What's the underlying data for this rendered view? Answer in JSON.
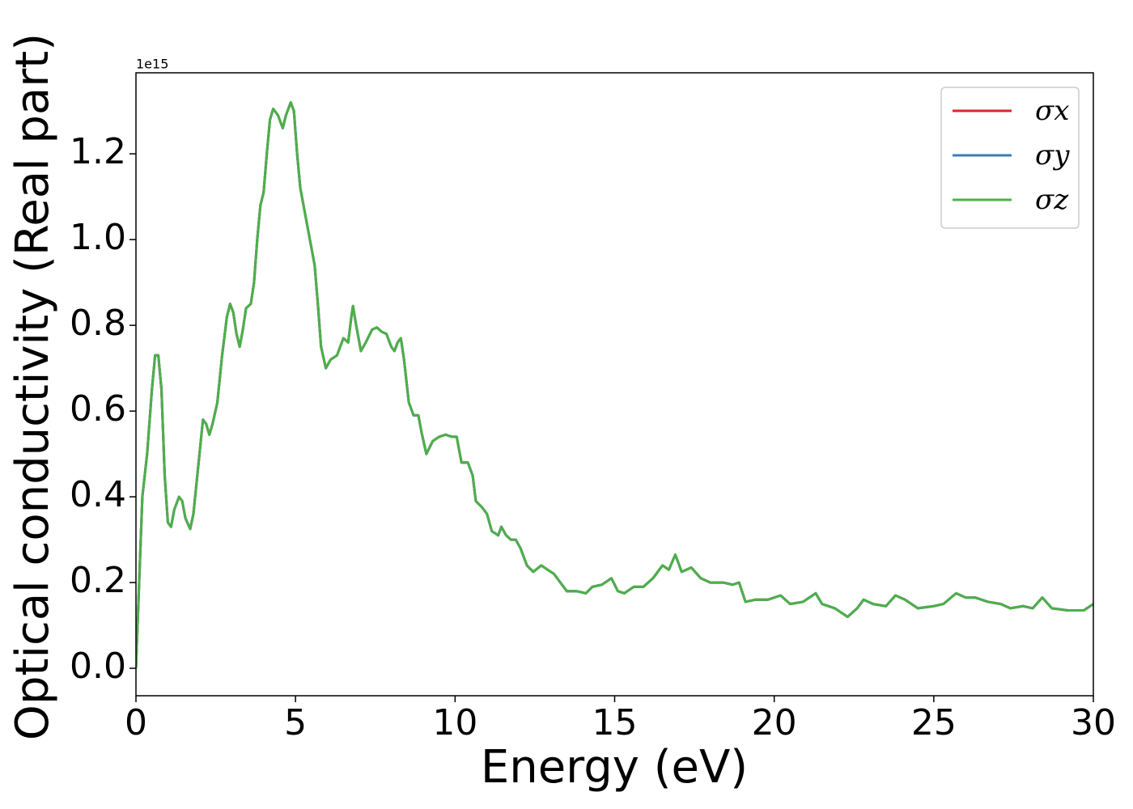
{
  "chart_data": {
    "type": "line",
    "x_label": "Energy (eV)",
    "y_label": "Optical conductivity (Real part)",
    "y_offset_label": "1e15",
    "xlim": [
      0,
      30
    ],
    "ylim": [
      -0.064,
      1.389
    ],
    "xticks": [
      0,
      5,
      10,
      15,
      20,
      25,
      30
    ],
    "yticks": [
      {
        "value": 0,
        "label": "0.0"
      },
      {
        "value": 0.2,
        "label": "0.2"
      },
      {
        "value": 0.4,
        "label": "0.4"
      },
      {
        "value": 0.6,
        "label": "0.6"
      },
      {
        "value": 0.8,
        "label": "0.8"
      },
      {
        "value": 1.0,
        "label": "1.0"
      },
      {
        "value": 1.2,
        "label": "1.2"
      }
    ],
    "legend": "upper right",
    "x": [
      0,
      0.1,
      0.2,
      0.35,
      0.5,
      0.6,
      0.7,
      0.8,
      0.9,
      1.0,
      1.1,
      1.2,
      1.35,
      1.45,
      1.55,
      1.7,
      1.8,
      1.95,
      2.1,
      2.2,
      2.3,
      2.4,
      2.55,
      2.7,
      2.85,
      2.95,
      3.05,
      3.15,
      3.25,
      3.35,
      3.45,
      3.6,
      3.7,
      3.8,
      3.9,
      4.0,
      4.1,
      4.2,
      4.3,
      4.45,
      4.6,
      4.7,
      4.85,
      4.95,
      5.05,
      5.15,
      5.3,
      5.5,
      5.6,
      5.7,
      5.8,
      5.95,
      6.1,
      6.3,
      6.5,
      6.65,
      6.75,
      6.8,
      6.9,
      7.05,
      7.2,
      7.4,
      7.55,
      7.7,
      7.85,
      8.0,
      8.1,
      8.2,
      8.3,
      8.4,
      8.55,
      8.7,
      8.85,
      8.95,
      9.1,
      9.3,
      9.5,
      9.7,
      9.9,
      10.05,
      10.2,
      10.4,
      10.55,
      10.65,
      10.85,
      11.0,
      11.15,
      11.35,
      11.45,
      11.6,
      11.75,
      11.9,
      12.05,
      12.25,
      12.45,
      12.7,
      12.9,
      13.1,
      13.3,
      13.5,
      13.8,
      14.1,
      14.3,
      14.6,
      14.9,
      15.1,
      15.3,
      15.6,
      15.9,
      16.2,
      16.5,
      16.7,
      16.9,
      17.1,
      17.4,
      17.7,
      18.0,
      18.4,
      18.7,
      18.9,
      19.1,
      19.4,
      19.8,
      20.2,
      20.5,
      20.9,
      21.3,
      21.5,
      21.9,
      22.3,
      22.6,
      22.8,
      23.1,
      23.5,
      23.8,
      24.1,
      24.5,
      25.0,
      25.3,
      25.7,
      26.0,
      26.3,
      26.7,
      27.1,
      27.4,
      27.8,
      28.1,
      28.4,
      28.7,
      29.2,
      29.7,
      30.0
    ],
    "series": [
      {
        "name": "σx",
        "color": "#d62728",
        "values": [
          0.0,
          0.2,
          0.4,
          0.5,
          0.65,
          0.73,
          0.73,
          0.65,
          0.45,
          0.34,
          0.33,
          0.37,
          0.4,
          0.39,
          0.35,
          0.325,
          0.36,
          0.47,
          0.58,
          0.57,
          0.545,
          0.57,
          0.62,
          0.73,
          0.82,
          0.85,
          0.83,
          0.78,
          0.75,
          0.79,
          0.84,
          0.85,
          0.9,
          1.0,
          1.08,
          1.11,
          1.2,
          1.28,
          1.305,
          1.29,
          1.26,
          1.29,
          1.32,
          1.3,
          1.2,
          1.12,
          1.06,
          0.98,
          0.94,
          0.85,
          0.75,
          0.7,
          0.72,
          0.73,
          0.77,
          0.76,
          0.82,
          0.845,
          0.8,
          0.74,
          0.76,
          0.79,
          0.795,
          0.785,
          0.78,
          0.75,
          0.74,
          0.76,
          0.77,
          0.72,
          0.62,
          0.59,
          0.59,
          0.55,
          0.5,
          0.53,
          0.54,
          0.545,
          0.54,
          0.54,
          0.48,
          0.48,
          0.45,
          0.39,
          0.375,
          0.36,
          0.32,
          0.31,
          0.33,
          0.31,
          0.3,
          0.3,
          0.28,
          0.24,
          0.225,
          0.24,
          0.23,
          0.22,
          0.2,
          0.18,
          0.18,
          0.175,
          0.19,
          0.195,
          0.21,
          0.18,
          0.175,
          0.19,
          0.19,
          0.21,
          0.24,
          0.23,
          0.265,
          0.225,
          0.235,
          0.21,
          0.2,
          0.2,
          0.195,
          0.2,
          0.155,
          0.16,
          0.16,
          0.17,
          0.15,
          0.155,
          0.175,
          0.15,
          0.14,
          0.12,
          0.14,
          0.16,
          0.15,
          0.145,
          0.17,
          0.16,
          0.14,
          0.145,
          0.15,
          0.175,
          0.165,
          0.165,
          0.155,
          0.15,
          0.14,
          0.145,
          0.14,
          0.165,
          0.14,
          0.135,
          0.135,
          0.15
        ]
      },
      {
        "name": "σy",
        "color": "#3a7fb8",
        "values": [
          0.0,
          0.2,
          0.4,
          0.5,
          0.65,
          0.73,
          0.73,
          0.65,
          0.45,
          0.34,
          0.33,
          0.37,
          0.4,
          0.39,
          0.35,
          0.325,
          0.36,
          0.47,
          0.58,
          0.57,
          0.545,
          0.57,
          0.62,
          0.73,
          0.82,
          0.85,
          0.83,
          0.78,
          0.75,
          0.79,
          0.84,
          0.85,
          0.9,
          1.0,
          1.08,
          1.11,
          1.2,
          1.28,
          1.305,
          1.29,
          1.26,
          1.29,
          1.32,
          1.3,
          1.2,
          1.12,
          1.06,
          0.98,
          0.94,
          0.85,
          0.75,
          0.7,
          0.72,
          0.73,
          0.77,
          0.76,
          0.82,
          0.845,
          0.8,
          0.74,
          0.76,
          0.79,
          0.795,
          0.785,
          0.78,
          0.75,
          0.74,
          0.76,
          0.77,
          0.72,
          0.62,
          0.59,
          0.59,
          0.55,
          0.5,
          0.53,
          0.54,
          0.545,
          0.54,
          0.54,
          0.48,
          0.48,
          0.45,
          0.39,
          0.375,
          0.36,
          0.32,
          0.31,
          0.33,
          0.31,
          0.3,
          0.3,
          0.28,
          0.24,
          0.225,
          0.24,
          0.23,
          0.22,
          0.2,
          0.18,
          0.18,
          0.175,
          0.19,
          0.195,
          0.21,
          0.18,
          0.175,
          0.19,
          0.19,
          0.21,
          0.24,
          0.23,
          0.265,
          0.225,
          0.235,
          0.21,
          0.2,
          0.2,
          0.195,
          0.2,
          0.155,
          0.16,
          0.16,
          0.17,
          0.15,
          0.155,
          0.175,
          0.15,
          0.14,
          0.12,
          0.14,
          0.16,
          0.15,
          0.145,
          0.17,
          0.16,
          0.14,
          0.145,
          0.15,
          0.175,
          0.165,
          0.165,
          0.155,
          0.15,
          0.14,
          0.145,
          0.14,
          0.165,
          0.14,
          0.135,
          0.135,
          0.15
        ]
      },
      {
        "name": "σz",
        "color": "#4daf4a",
        "values": [
          0.0,
          0.2,
          0.4,
          0.5,
          0.65,
          0.73,
          0.73,
          0.65,
          0.45,
          0.34,
          0.33,
          0.37,
          0.4,
          0.39,
          0.35,
          0.325,
          0.36,
          0.47,
          0.58,
          0.57,
          0.545,
          0.57,
          0.62,
          0.73,
          0.82,
          0.85,
          0.83,
          0.78,
          0.75,
          0.79,
          0.84,
          0.85,
          0.9,
          1.0,
          1.08,
          1.11,
          1.2,
          1.28,
          1.305,
          1.29,
          1.26,
          1.29,
          1.32,
          1.3,
          1.2,
          1.12,
          1.06,
          0.98,
          0.94,
          0.85,
          0.75,
          0.7,
          0.72,
          0.73,
          0.77,
          0.76,
          0.82,
          0.845,
          0.8,
          0.74,
          0.76,
          0.79,
          0.795,
          0.785,
          0.78,
          0.75,
          0.74,
          0.76,
          0.77,
          0.72,
          0.62,
          0.59,
          0.59,
          0.55,
          0.5,
          0.53,
          0.54,
          0.545,
          0.54,
          0.54,
          0.48,
          0.48,
          0.45,
          0.39,
          0.375,
          0.36,
          0.32,
          0.31,
          0.33,
          0.31,
          0.3,
          0.3,
          0.28,
          0.24,
          0.225,
          0.24,
          0.23,
          0.22,
          0.2,
          0.18,
          0.18,
          0.175,
          0.19,
          0.195,
          0.21,
          0.18,
          0.175,
          0.19,
          0.19,
          0.21,
          0.24,
          0.23,
          0.265,
          0.225,
          0.235,
          0.21,
          0.2,
          0.2,
          0.195,
          0.2,
          0.155,
          0.16,
          0.16,
          0.17,
          0.15,
          0.155,
          0.175,
          0.15,
          0.14,
          0.12,
          0.14,
          0.16,
          0.15,
          0.145,
          0.17,
          0.16,
          0.14,
          0.145,
          0.15,
          0.175,
          0.165,
          0.165,
          0.155,
          0.15,
          0.14,
          0.145,
          0.14,
          0.165,
          0.14,
          0.135,
          0.135,
          0.15
        ]
      }
    ]
  }
}
